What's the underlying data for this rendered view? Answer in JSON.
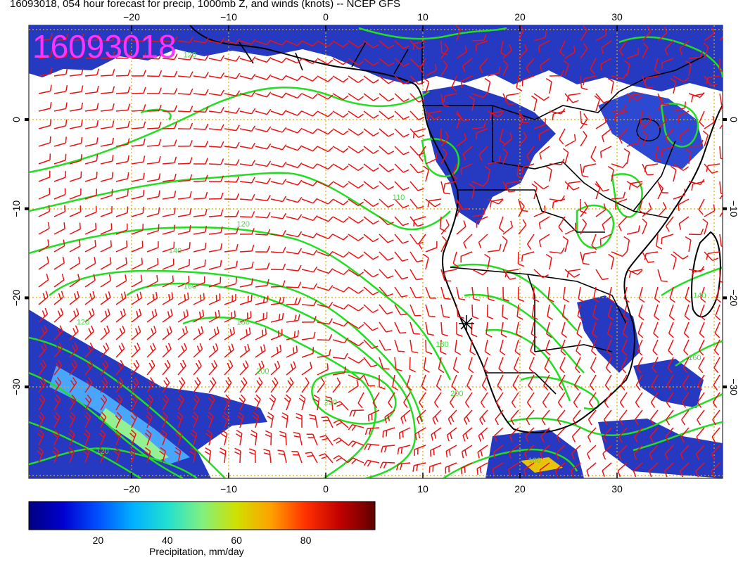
{
  "title": "16093018, 054 hour forecast for precip, 1000mb Z, and winds (knots) -- NCEP GFS",
  "stamp": "16093018",
  "map": {
    "lon_range": [
      -30,
      42
    ],
    "lat_range": [
      -40,
      10
    ],
    "lon_ticks": [
      "−20",
      "−10",
      "0",
      "10",
      "20",
      "30"
    ],
    "lat_ticks": [
      "0",
      "−10",
      "−20",
      "−30"
    ],
    "lon_tick_values": [
      -20,
      -10,
      0,
      10,
      20,
      30
    ],
    "lat_tick_values": [
      0,
      -10,
      -20,
      -30
    ],
    "contour_labels": [
      {
        "text": "120",
        "lon": -25,
        "lat": -23
      },
      {
        "text": "120",
        "lon": -8.5,
        "lat": -12
      },
      {
        "text": "140",
        "lon": -15.5,
        "lat": -15
      },
      {
        "text": "160",
        "lon": -14,
        "lat": -19
      },
      {
        "text": "180",
        "lon": -8.5,
        "lat": -23
      },
      {
        "text": "200",
        "lon": -6.5,
        "lat": -28.5
      },
      {
        "text": "220",
        "lon": 0.5,
        "lat": -32
      },
      {
        "text": "200",
        "lon": 13.5,
        "lat": -31
      },
      {
        "text": "180",
        "lon": 12,
        "lat": -25.5
      },
      {
        "text": "160",
        "lon": 21.5,
        "lat": -38.5
      },
      {
        "text": "140",
        "lon": 38.5,
        "lat": -20
      },
      {
        "text": "160",
        "lon": 38,
        "lat": -27
      },
      {
        "text": "120",
        "lon": -23,
        "lat": -37.5
      },
      {
        "text": "120",
        "lon": -14,
        "lat": 7
      },
      {
        "text": "110",
        "lon": 7.5,
        "lat": -9
      }
    ],
    "colors": {
      "contour": "#22dd22",
      "wind": "#ee1111",
      "grid": "#ddaa00",
      "coast": "#000000",
      "stamp": "#ff33ff"
    }
  },
  "colorbar": {
    "label": "Precipitation, mm/day",
    "ticks": [
      "20",
      "40",
      "60",
      "80"
    ],
    "tick_values": [
      20,
      40,
      60,
      80
    ],
    "range": [
      0,
      100
    ],
    "colors": [
      "#00007f",
      "#0000d0",
      "#0050ff",
      "#00b0ff",
      "#20e0d0",
      "#80f080",
      "#d0e000",
      "#ffa000",
      "#ff3000",
      "#c00000",
      "#600000"
    ]
  }
}
